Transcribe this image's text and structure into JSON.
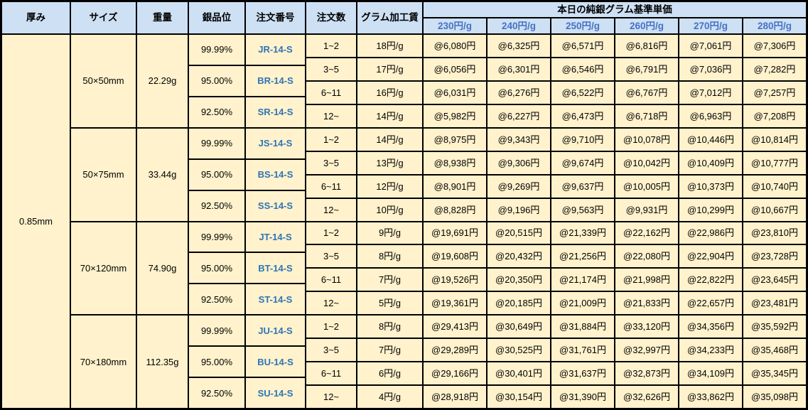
{
  "colors": {
    "header_bg": "#CEE0F4",
    "body_bg": "#FFF2CC",
    "border": "#000000",
    "header_blue": "#4472C4",
    "link_blue": "#2E74B5"
  },
  "table": {
    "columns": [
      "厚み",
      "サイズ",
      "重量",
      "銀品位",
      "注文番号",
      "注文数",
      "グラム加工賃"
    ],
    "price_group_header": "本日の純銀グラム基準単価",
    "price_headers": [
      "230円/g",
      "240円/g",
      "250円/g",
      "260円/g",
      "270円/g",
      "280円/g"
    ],
    "thickness": "0.85mm",
    "blocks": [
      {
        "size": "50×50mm",
        "weight": "22.29g",
        "variants": [
          {
            "purity": "99.99%",
            "order_no": "JR-14-S"
          },
          {
            "purity": "95.00%",
            "order_no": "BR-14-S"
          },
          {
            "purity": "92.50%",
            "order_no": "SR-14-S"
          }
        ],
        "rows": [
          {
            "qty": "1~2",
            "fee": "18円/g",
            "prices": [
              "@6,080円",
              "@6,325円",
              "@6,571円",
              "@6,816円",
              "@7,061円",
              "@7,306円"
            ]
          },
          {
            "qty": "3~5",
            "fee": "17円/g",
            "prices": [
              "@6,056円",
              "@6,301円",
              "@6,546円",
              "@6,791円",
              "@7,036円",
              "@7,282円"
            ]
          },
          {
            "qty": "6~11",
            "fee": "16円/g",
            "prices": [
              "@6,031円",
              "@6,276円",
              "@6,522円",
              "@6,767円",
              "@7,012円",
              "@7,257円"
            ]
          },
          {
            "qty": "12~",
            "fee": "14円/g",
            "prices": [
              "@5,982円",
              "@6,227円",
              "@6,473円",
              "@6,718円",
              "@6,963円",
              "@7,208円"
            ]
          }
        ]
      },
      {
        "size": "50×75mm",
        "weight": "33.44g",
        "variants": [
          {
            "purity": "99.99%",
            "order_no": "JS-14-S"
          },
          {
            "purity": "95.00%",
            "order_no": "BS-14-S"
          },
          {
            "purity": "92.50%",
            "order_no": "SS-14-S"
          }
        ],
        "rows": [
          {
            "qty": "1~2",
            "fee": "14円/g",
            "prices": [
              "@8,975円",
              "@9,343円",
              "@9,710円",
              "@10,078円",
              "@10,446円",
              "@10,814円"
            ]
          },
          {
            "qty": "3~5",
            "fee": "13円/g",
            "prices": [
              "@8,938円",
              "@9,306円",
              "@9,674円",
              "@10,042円",
              "@10,409円",
              "@10,777円"
            ]
          },
          {
            "qty": "6~11",
            "fee": "12円/g",
            "prices": [
              "@8,901円",
              "@9,269円",
              "@9,637円",
              "@10,005円",
              "@10,373円",
              "@10,740円"
            ]
          },
          {
            "qty": "12~",
            "fee": "10円/g",
            "prices": [
              "@8,828円",
              "@9,196円",
              "@9,563円",
              "@9,931円",
              "@10,299円",
              "@10,667円"
            ]
          }
        ]
      },
      {
        "size": "70×120mm",
        "weight": "74.90g",
        "variants": [
          {
            "purity": "99.99%",
            "order_no": "JT-14-S"
          },
          {
            "purity": "95.00%",
            "order_no": "BT-14-S"
          },
          {
            "purity": "92.50%",
            "order_no": "ST-14-S"
          }
        ],
        "rows": [
          {
            "qty": "1~2",
            "fee": "9円/g",
            "prices": [
              "@19,691円",
              "@20,515円",
              "@21,339円",
              "@22,162円",
              "@22,986円",
              "@23,810円"
            ]
          },
          {
            "qty": "3~5",
            "fee": "8円/g",
            "prices": [
              "@19,608円",
              "@20,432円",
              "@21,256円",
              "@22,080円",
              "@22,904円",
              "@23,728円"
            ]
          },
          {
            "qty": "6~11",
            "fee": "7円/g",
            "prices": [
              "@19,526円",
              "@20,350円",
              "@21,174円",
              "@21,998円",
              "@22,822円",
              "@23,645円"
            ]
          },
          {
            "qty": "12~",
            "fee": "5円/g",
            "prices": [
              "@19,361円",
              "@20,185円",
              "@21,009円",
              "@21,833円",
              "@22,657円",
              "@23,481円"
            ]
          }
        ]
      },
      {
        "size": "70×180mm",
        "weight": "112.35g",
        "variants": [
          {
            "purity": "99.99%",
            "order_no": "JU-14-S"
          },
          {
            "purity": "95.00%",
            "order_no": "BU-14-S"
          },
          {
            "purity": "92.50%",
            "order_no": "SU-14-S"
          }
        ],
        "rows": [
          {
            "qty": "1~2",
            "fee": "8円/g",
            "prices": [
              "@29,413円",
              "@30,649円",
              "@31,884円",
              "@33,120円",
              "@34,356円",
              "@35,592円"
            ]
          },
          {
            "qty": "3~5",
            "fee": "7円/g",
            "prices": [
              "@29,289円",
              "@30,525円",
              "@31,761円",
              "@32,997円",
              "@34,233円",
              "@35,468円"
            ]
          },
          {
            "qty": "6~11",
            "fee": "6円/g",
            "prices": [
              "@29,166円",
              "@30,401円",
              "@31,637円",
              "@32,873円",
              "@34,109円",
              "@35,345円"
            ]
          },
          {
            "qty": "12~",
            "fee": "4円/g",
            "prices": [
              "@28,918円",
              "@30,154円",
              "@31,390円",
              "@32,626円",
              "@33,862円",
              "@35,098円"
            ]
          }
        ]
      }
    ]
  }
}
